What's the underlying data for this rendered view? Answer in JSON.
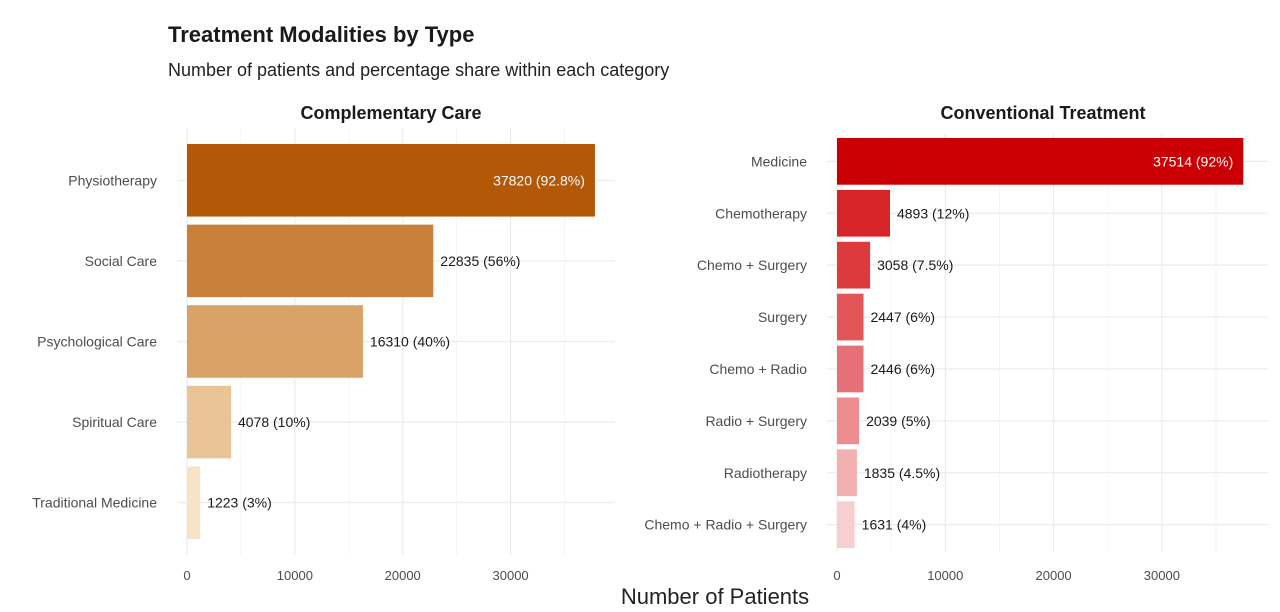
{
  "title": "Treatment Modalities by Type",
  "subtitle": "Number of patients and percentage share within each category",
  "xlabel": "Number of Patients",
  "chart_data": [
    {
      "type": "bar",
      "orientation": "horizontal",
      "title": "Complementary Care",
      "categories": [
        "Physiotherapy",
        "Social Care",
        "Psychological Care",
        "Spiritual Care",
        "Traditional Medicine"
      ],
      "values": [
        37820,
        22835,
        16310,
        4078,
        1223
      ],
      "labels": [
        "37820 (92.8%)",
        "22835 (56%)",
        "16310 (40%)",
        "4078 (10%)",
        "1223 (3%)"
      ],
      "colors": [
        "#b35806",
        "#c8803a",
        "#d9a266",
        "#e9c497",
        "#f8e3c8"
      ],
      "xticks": [
        0,
        10000,
        20000,
        30000
      ],
      "xlim": [
        0,
        40000
      ],
      "grid": true
    },
    {
      "type": "bar",
      "orientation": "horizontal",
      "title": "Conventional Treatment",
      "categories": [
        "Medicine",
        "Chemotherapy",
        "Chemo + Surgery",
        "Surgery",
        "Chemo + Radio",
        "Radio + Surgery",
        "Radiotherapy",
        "Chemo + Radio + Surgery"
      ],
      "values": [
        37514,
        4893,
        3058,
        2447,
        2446,
        2039,
        1835,
        1631
      ],
      "labels": [
        "37514 (92%)",
        "4893 (12%)",
        "3058 (7.5%)",
        "2447 (6%)",
        "2446 (6%)",
        "2039 (5%)",
        "1835 (4.5%)",
        "1631 (4%)"
      ],
      "colors": [
        "#cb0005",
        "#d72428",
        "#dd3a3e",
        "#e25659",
        "#e6707a",
        "#ec8d8f",
        "#f3aeb0",
        "#f8cfd0"
      ],
      "xticks": [
        0,
        10000,
        20000,
        30000
      ],
      "xlim": [
        0,
        40000
      ],
      "grid": true
    }
  ]
}
